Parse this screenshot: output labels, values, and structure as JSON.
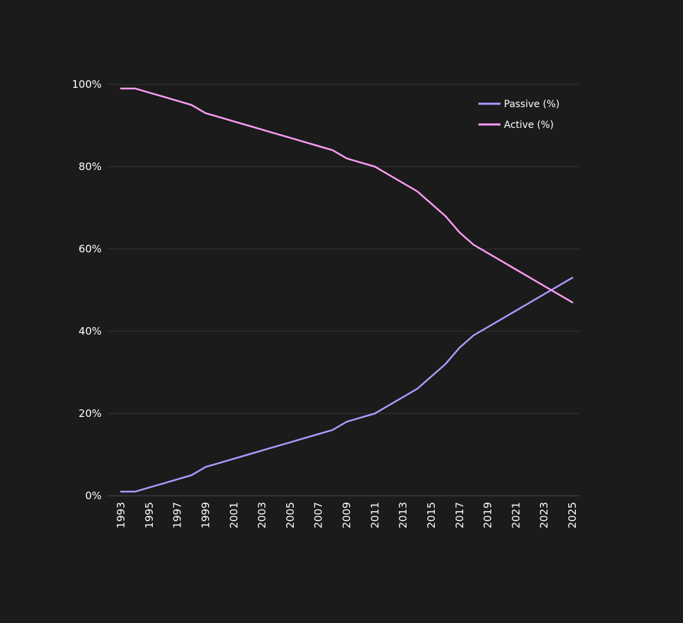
{
  "chart_data": {
    "type": "line",
    "title": "",
    "xlabel": "",
    "ylabel": "",
    "x": [
      1993,
      1994,
      1995,
      1996,
      1997,
      1998,
      1999,
      2000,
      2001,
      2002,
      2003,
      2004,
      2005,
      2006,
      2007,
      2008,
      2009,
      2010,
      2011,
      2012,
      2013,
      2014,
      2015,
      2016,
      2017,
      2018,
      2019,
      2020,
      2021,
      2022,
      2023,
      2024,
      2025
    ],
    "x_tick_labels": [
      "1993",
      "1995",
      "1997",
      "1999",
      "2001",
      "2003",
      "2005",
      "2007",
      "2009",
      "2011",
      "2013",
      "2015",
      "2017",
      "2019",
      "2021",
      "2023",
      "2025"
    ],
    "xlim": [
      1993,
      2025
    ],
    "ylim": [
      0,
      100
    ],
    "y_ticks": [
      0,
      20,
      40,
      60,
      80,
      100
    ],
    "y_tick_labels": [
      "0%",
      "20%",
      "40%",
      "60%",
      "80%",
      "100%"
    ],
    "grid": "horizontal",
    "legend_position": "top-right",
    "series": [
      {
        "name": "Passive (%)",
        "color": "#a79cff",
        "values": [
          1,
          1,
          2,
          3,
          4,
          5,
          7,
          8,
          9,
          10,
          11,
          12,
          13,
          14,
          15,
          16,
          18,
          19,
          20,
          22,
          24,
          26,
          29,
          32,
          36,
          39,
          41,
          43,
          45,
          47,
          49,
          51,
          53
        ]
      },
      {
        "name": "Active (%)",
        "color": "#ff9cf5",
        "values": [
          99,
          99,
          98,
          97,
          96,
          95,
          93,
          92,
          91,
          90,
          89,
          88,
          87,
          86,
          85,
          84,
          82,
          81,
          80,
          78,
          76,
          74,
          71,
          68,
          64,
          61,
          59,
          57,
          55,
          53,
          51,
          49,
          47
        ]
      }
    ]
  }
}
